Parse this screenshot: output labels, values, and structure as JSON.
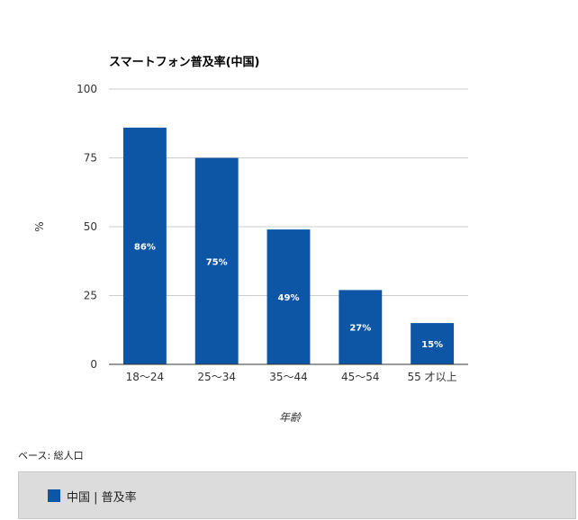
{
  "colors": {
    "bar": "#0d56a6",
    "grid": "#cccccc",
    "axis": "#333333"
  },
  "chart_data": {
    "type": "bar",
    "title": "スマートフォン普及率(中国)",
    "xlabel": "年齢",
    "ylabel": "%",
    "categories": [
      "18〜24",
      "25〜34",
      "35〜44",
      "45〜54",
      "55 才以上"
    ],
    "series": [
      {
        "name": "中国 | 普及率",
        "values": [
          86,
          75,
          49,
          27,
          15
        ],
        "labels": [
          "86%",
          "75%",
          "49%",
          "27%",
          "15%"
        ]
      }
    ],
    "ylim": [
      0,
      100
    ],
    "yticks": [
      0,
      25,
      50,
      75,
      100
    ],
    "grid": true,
    "legend_position": "bottom"
  },
  "footnote": "ベース: 総人口",
  "legend": {
    "label": "中国 | 普及率"
  }
}
